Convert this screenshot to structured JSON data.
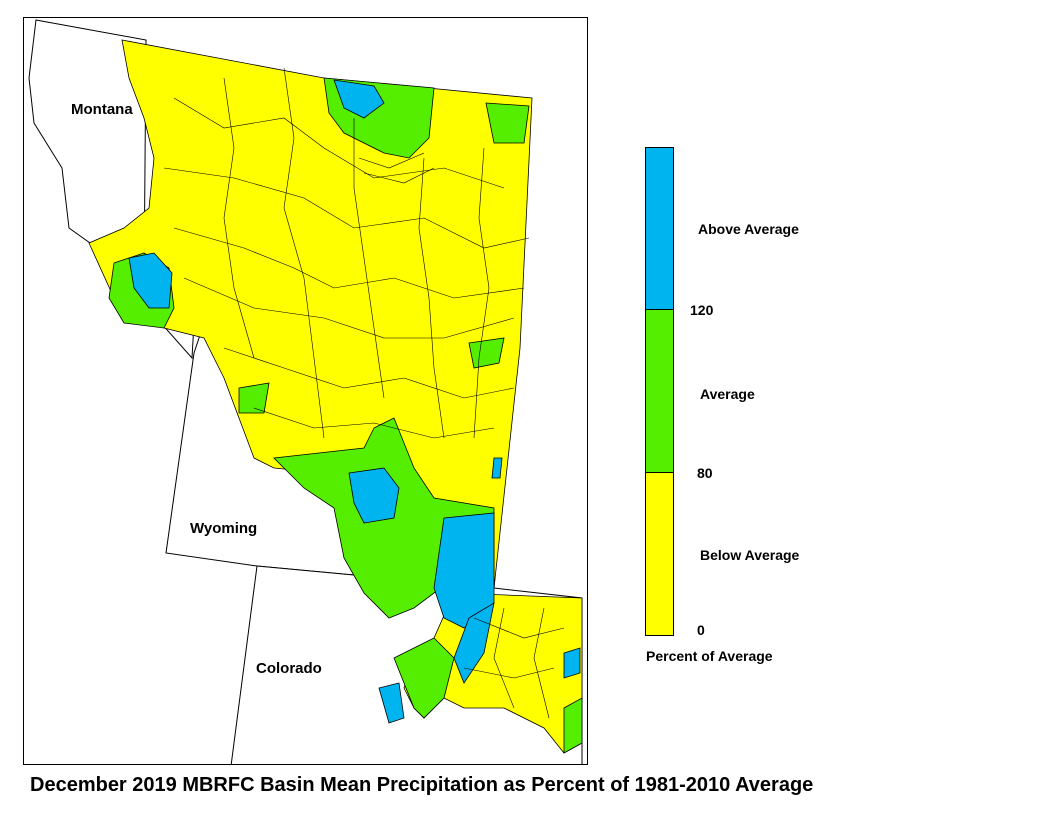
{
  "title": "December 2019 MBRFC Basin Mean Precipitation as Percent of 1981-2010 Average",
  "map": {
    "states": [
      {
        "name": "Montana"
      },
      {
        "name": "Wyoming"
      },
      {
        "name": "Colorado"
      }
    ],
    "fill_colors": {
      "above": "#00b4f0",
      "average": "#55ee00",
      "below": "#ffff00",
      "outline": "#000000"
    }
  },
  "legend": {
    "title": "Percent of Average",
    "classes": [
      {
        "label": "Above Average",
        "color": "#00b4f0",
        "range": [
          120,
          null
        ]
      },
      {
        "label": "Average",
        "color": "#55ee00",
        "range": [
          80,
          120
        ]
      },
      {
        "label": "Below Average",
        "color": "#ffff00",
        "range": [
          0,
          80
        ]
      }
    ],
    "breaks": [
      "120",
      "80",
      "0"
    ]
  }
}
